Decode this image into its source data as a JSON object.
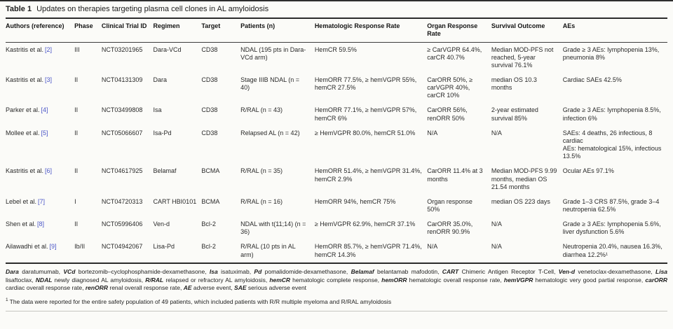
{
  "title": {
    "label": "Table 1",
    "text": "Updates on therapies targeting plasma cell clones in AL amyloidosis"
  },
  "table": {
    "headers": {
      "authors": "Authors (reference)",
      "phase": "Phase",
      "trial_id": "Clinical Trial ID",
      "regimen": "Regimen",
      "target": "Target",
      "patients": "Patients (n)",
      "hematologic": "Hematologic Response Rate",
      "organ": "Organ Response Rate",
      "survival": "Survival Outcome",
      "aes": "AEs"
    },
    "rows": [
      {
        "author": "Kastritis et al.",
        "ref": "[2]",
        "phase": "III",
        "trial_id": "NCT03201965",
        "regimen": "Dara-VCd",
        "target": "CD38",
        "patients": "NDAL (195 pts in Dara-VCd arm)",
        "hematologic": "HemCR 59.5%",
        "organ": "≥ CarVGPR 64.4%, carCR 40.7%",
        "survival": "Median MOD-PFS not reached, 5-year survival 76.1%",
        "aes": "Grade ≥ 3 AEs: lymphopenia 13%, pneumonia 8%"
      },
      {
        "author": "Kastritis et al.",
        "ref": "[3]",
        "phase": "II",
        "trial_id": "NCT04131309",
        "regimen": "Dara",
        "target": "CD38",
        "patients": "Stage IIIB NDAL (n = 40)",
        "hematologic": "HemORR 77.5%, ≥ hemVGPR 55%, hemCR 27.5%",
        "organ": "CarORR 50%, ≥ carVGPR 40%, carCR 10%",
        "survival": "median OS 10.3 months",
        "aes": "Cardiac SAEs 42.5%"
      },
      {
        "author": "Parker et al.",
        "ref": "[4]",
        "phase": "II",
        "trial_id": "NCT03499808",
        "regimen": "Isa",
        "target": "CD38",
        "patients": "R/RAL (n = 43)",
        "hematologic": "HemORR 77.1%, ≥ hemVGPR 57%, hemCR 6%",
        "organ": "CarORR 56%, renORR 50%",
        "survival": "2-year estimated survival 85%",
        "aes": "Grade ≥ 3 AEs: lymphopenia 8.5%, infection 6%"
      },
      {
        "author": "Mollee et al.",
        "ref": "[5]",
        "phase": "II",
        "trial_id": "NCT05066607",
        "regimen": "Isa-Pd",
        "target": "CD38",
        "patients": "Relapsed AL (n = 42)",
        "hematologic": "≥ HemVGPR 80.0%, hemCR 51.0%",
        "organ": "N/A",
        "survival": "N/A",
        "aes": "SAEs: 4 deaths, 26 infectious, 8 cardiac\nAEs: hematological 15%, infectious 13.5%"
      },
      {
        "author": "Kastritis et al.",
        "ref": "[6]",
        "phase": "II",
        "trial_id": "NCT04617925",
        "regimen": "Belamaf",
        "target": "BCMA",
        "patients": "R/RAL (n = 35)",
        "hematologic": "HemORR 51.4%, ≥ hemVGPR 31.4%, hemCR 2.9%",
        "organ": "CarORR 11.4% at 3 months",
        "survival": "Median MOD-PFS 9.99 months, median OS 21.54 months",
        "aes": "Ocular AEs 97.1%"
      },
      {
        "author": "Lebel et al.",
        "ref": "[7]",
        "phase": "I",
        "trial_id": "NCT04720313",
        "regimen": "CART HBI0101",
        "target": "BCMA",
        "patients": "R/RAL (n = 16)",
        "hematologic": "HemORR 94%, hemCR 75%",
        "organ": "Organ response 50%",
        "survival": "median OS 223 days",
        "aes": "Grade 1–3 CRS 87.5%, grade 3–4 neutropenia 62.5%"
      },
      {
        "author": "Shen et al.",
        "ref": "[8]",
        "phase": "II",
        "trial_id": "NCT05996406",
        "regimen": "Ven-d",
        "target": "Bcl-2",
        "patients": "NDAL with t(11;14) (n = 36)",
        "hematologic": "≥ HemVGPR 62.9%, hemCR 37.1%",
        "organ": "CarORR 35.0%, renORR 90.9%",
        "survival": "N/A",
        "aes": "Grade ≥ 3 AEs: lymphopenia 5.6%, liver dysfunction 5.6%"
      },
      {
        "author": "Ailawadhi et al.",
        "ref": "[9]",
        "phase": "Ib/II",
        "trial_id": "NCT04942067",
        "regimen": "Lisa-Pd",
        "target": "Bcl-2",
        "patients": "R/RAL (10 pts in AL arm)",
        "hematologic": "HemORR 85.7%, ≥ hemVGPR 71.4%, hemCR 14.3%",
        "organ": "N/A",
        "survival": "N/A",
        "aes": "Neutropenia 20.4%, nausea 16.3%, diarrhea 12.2%¹"
      }
    ]
  },
  "footnotes": {
    "abbreviations": [
      {
        "term": "Dara",
        "def": "daratumumab"
      },
      {
        "term": "VCd",
        "def": "bortezomib–cyclophosphamide-dexamethasone"
      },
      {
        "term": "Isa",
        "def": "isatuximab"
      },
      {
        "term": "Pd",
        "def": "pomalidomide-dexamethasone"
      },
      {
        "term": "Belamaf",
        "def": "belantamab mafodotin"
      },
      {
        "term": "CART",
        "def": "Chimeric Antigen Receptor T-Cell"
      },
      {
        "term": "Ven-d",
        "def": "venetoclax-dexamethasone"
      },
      {
        "term": "Lisa",
        "def": "lisaftoclax"
      },
      {
        "term": "NDAL",
        "def": "newly diagnosed AL amyloidosis"
      },
      {
        "term": "R/RAL",
        "def": "relapsed or refractory AL amyloidosis"
      },
      {
        "term": "hemCR",
        "def": "hematologic complete response"
      },
      {
        "term": "hemORR",
        "def": "hematologic overall response rate"
      },
      {
        "term": "hemVGPR",
        "def": "hematologic very good partial response"
      },
      {
        "term": "carORR",
        "def": "cardiac overall response rate"
      },
      {
        "term": "renORR",
        "def": "renal overall response rate"
      },
      {
        "term": "AE",
        "def": "adverse event"
      },
      {
        "term": "SAE",
        "def": "serious adverse event"
      }
    ],
    "note_marker": "1",
    "note_text": "The data were reported for the entire safety population of 49 patients, which included patients with R/R multiple myeloma and R/RAL amyloidosis"
  },
  "colors": {
    "reference_link": "#4a55c8",
    "rule_dark": "#2b2b2b"
  }
}
